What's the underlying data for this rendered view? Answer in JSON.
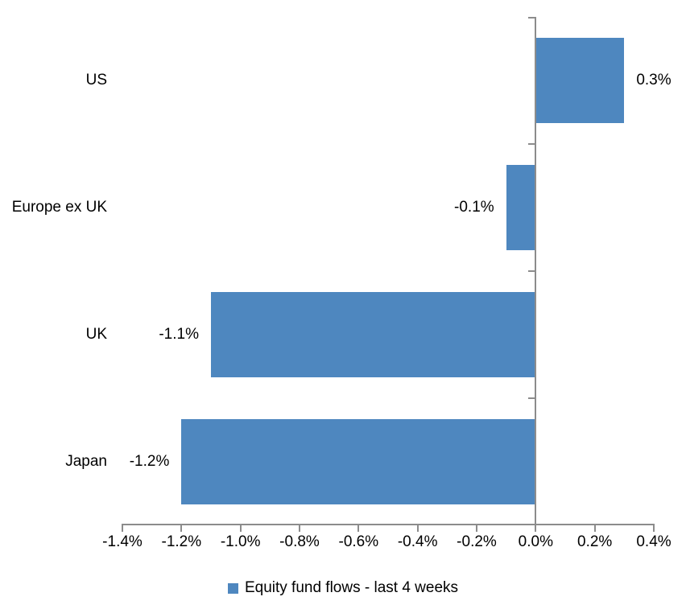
{
  "chart_data": {
    "type": "bar",
    "orientation": "horizontal",
    "title": "",
    "xlabel": "",
    "ylabel": "",
    "categories": [
      "US",
      "Europe ex UK",
      "UK",
      "Japan"
    ],
    "series": [
      {
        "name": "Equity fund flows - last 4 weeks",
        "values": [
          0.3,
          -0.1,
          -1.1,
          -1.2
        ],
        "color": "#4E87BF"
      }
    ],
    "data_labels": [
      "0.3%",
      "-0.1%",
      "-1.1%",
      "-1.2%"
    ],
    "xlim": [
      -1.4,
      0.4
    ],
    "x_ticks": [
      -1.4,
      -1.2,
      -1.0,
      -0.8,
      -0.6,
      -0.4,
      -0.2,
      0.0,
      0.2,
      0.4
    ],
    "x_tick_labels": [
      "-1.4%",
      "-1.2%",
      "-1.0%",
      "-0.8%",
      "-0.6%",
      "-0.4%",
      "-0.2%",
      "0.0%",
      "0.2%",
      "0.4%"
    ],
    "grid": false,
    "legend_position": "bottom",
    "axis_color": "#8C8C8C",
    "text_color": "#000000",
    "background_color": "#FFFFFF"
  }
}
